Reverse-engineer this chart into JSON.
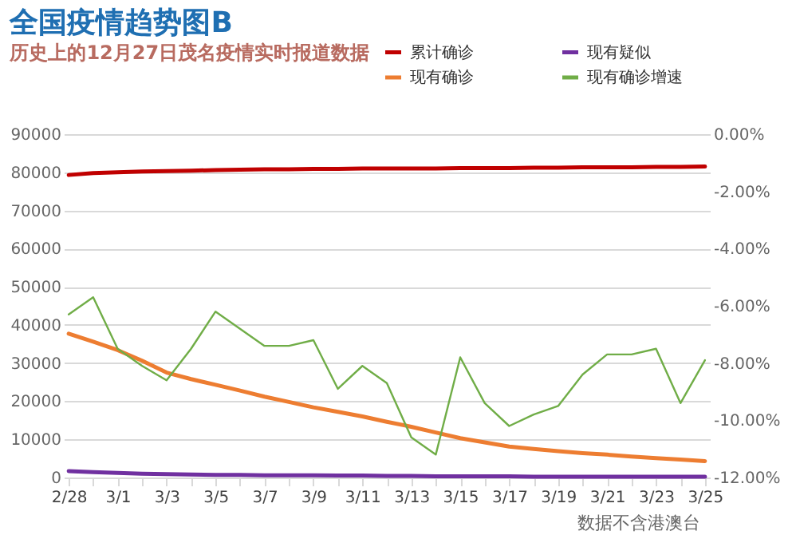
{
  "chart_data": {
    "type": "line",
    "title": "全国疫情趋势图B",
    "subtitle": "历史上的12月27日茂名疫情实时报道数据",
    "categories": [
      "2/28",
      null,
      "3/1",
      null,
      "3/3",
      null,
      "3/5",
      null,
      "3/7",
      null,
      "3/9",
      null,
      "3/11",
      null,
      "3/13",
      null,
      "3/15",
      null,
      "3/17",
      null,
      "3/19",
      null,
      "3/21",
      null,
      "3/23",
      null,
      "3/25"
    ],
    "series": [
      {
        "name": "累计确诊",
        "color": "#c00000",
        "values": [
          79300,
          79800,
          80000,
          80200,
          80300,
          80400,
          80600,
          80700,
          80800,
          80800,
          80900,
          80900,
          81000,
          81000,
          81000,
          81000,
          81100,
          81100,
          81100,
          81200,
          81200,
          81300,
          81300,
          81300,
          81400,
          81400,
          81500
        ]
      },
      {
        "name": "现有确诊",
        "color": "#ed7d31",
        "values": [
          37700,
          35600,
          33400,
          30600,
          27500,
          25800,
          24300,
          22800,
          21200,
          19800,
          18400,
          17200,
          16000,
          14600,
          13300,
          11800,
          10300,
          9200,
          8100,
          7500,
          6900,
          6400,
          6000,
          5500,
          5100,
          4700,
          4300
        ]
      },
      {
        "name": "现有疑似",
        "color": "#7030a0",
        "values": [
          1700,
          1400,
          1200,
          1000,
          900,
          800,
          700,
          700,
          600,
          600,
          600,
          500,
          500,
          400,
          400,
          300,
          300,
          300,
          300,
          200,
          200,
          200,
          200,
          200,
          200,
          200,
          200
        ]
      },
      {
        "name": "现有确诊增速",
        "color": "#70ad47",
        "axis": "y2",
        "values": [
          -6.3,
          -5.7,
          -7.5,
          -8.1,
          -8.6,
          -7.5,
          -6.2,
          -6.8,
          -7.4,
          -7.4,
          -7.2,
          -8.9,
          -8.1,
          -8.7,
          -10.6,
          -11.2,
          -7.8,
          -9.4,
          -10.2,
          -9.8,
          -9.5,
          -8.4,
          -7.7,
          -7.7,
          -7.5,
          -9.4,
          -7.9
        ]
      }
    ],
    "ylim": [
      0,
      90000
    ],
    "yticks": [
      0,
      10000,
      20000,
      30000,
      40000,
      50000,
      60000,
      70000,
      80000,
      90000
    ],
    "y2lim": [
      -12,
      0
    ],
    "y2ticks": [
      {
        "value": 0,
        "label": "0.00%"
      },
      {
        "value": -2,
        "label": "-2.00%"
      },
      {
        "value": -4,
        "label": "-4.00%"
      },
      {
        "value": -6,
        "label": "-6.00%"
      },
      {
        "value": -8,
        "label": "-8.00%"
      },
      {
        "value": -10,
        "label": "-10.00%"
      },
      {
        "value": -12,
        "label": "-12.00%"
      }
    ],
    "grid": "y",
    "legend": "top right",
    "marker": "none",
    "line_style": "solid",
    "annotations": [
      "数据不含港澳台"
    ]
  }
}
